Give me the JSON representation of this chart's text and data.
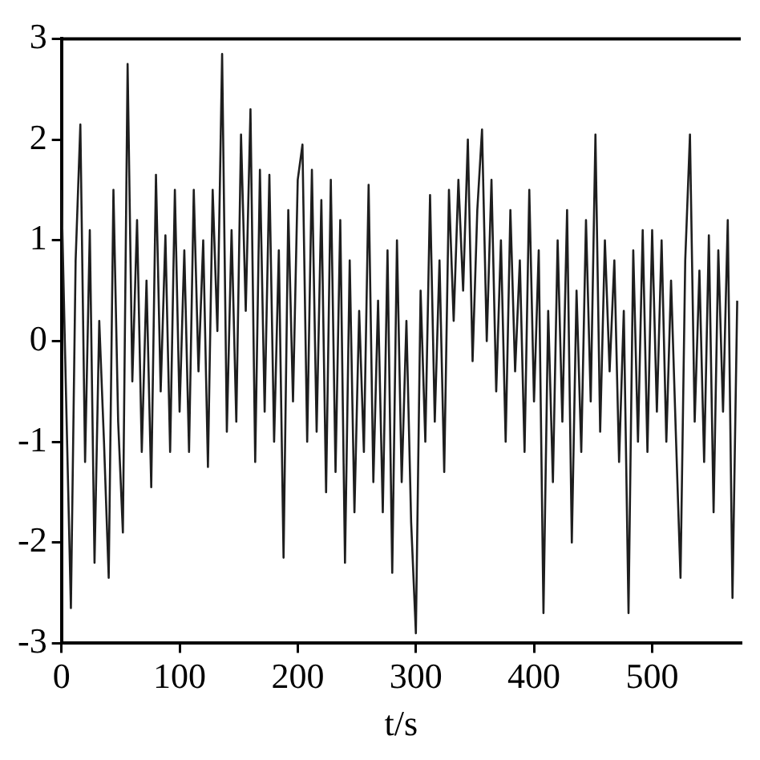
{
  "chart_data": {
    "type": "line",
    "xlabel": "t/s",
    "xlim": [
      0,
      575
    ],
    "xticks": [
      0,
      100,
      200,
      300,
      400,
      500
    ],
    "ylim": [
      -3,
      3
    ],
    "yticks": [
      -3,
      -2,
      -1,
      0,
      1,
      2,
      3
    ],
    "marker": "none",
    "line_style": "solid",
    "x": [
      0,
      4,
      8,
      12,
      16,
      20,
      24,
      28,
      32,
      36,
      40,
      44,
      48,
      52,
      56,
      60,
      64,
      68,
      72,
      76,
      80,
      84,
      88,
      92,
      96,
      100,
      104,
      108,
      112,
      116,
      120,
      124,
      128,
      132,
      136,
      140,
      144,
      148,
      152,
      156,
      160,
      164,
      168,
      172,
      176,
      180,
      184,
      188,
      192,
      196,
      200,
      204,
      208,
      212,
      216,
      220,
      224,
      228,
      232,
      236,
      240,
      244,
      248,
      252,
      256,
      260,
      264,
      268,
      272,
      276,
      280,
      284,
      288,
      292,
      296,
      300,
      304,
      308,
      312,
      316,
      320,
      324,
      328,
      332,
      336,
      340,
      344,
      348,
      352,
      356,
      360,
      364,
      368,
      372,
      376,
      380,
      384,
      388,
      392,
      396,
      400,
      404,
      408,
      412,
      416,
      420,
      424,
      428,
      432,
      436,
      440,
      444,
      448,
      452,
      456,
      460,
      464,
      468,
      472,
      476,
      480,
      484,
      488,
      492,
      496,
      500,
      504,
      508,
      512,
      516,
      520,
      524,
      528,
      532,
      536,
      540,
      544,
      548,
      552,
      556,
      560,
      564,
      568,
      572
    ],
    "series": [
      {
        "color": "#1e1e1e",
        "values": [
          1.5,
          -0.6,
          -2.65,
          0.8,
          2.15,
          -1.2,
          1.1,
          -2.2,
          0.2,
          -1.0,
          -2.35,
          1.5,
          -0.8,
          -1.9,
          2.75,
          -0.4,
          1.2,
          -1.1,
          0.6,
          -1.45,
          1.65,
          -0.5,
          1.05,
          -1.1,
          1.5,
          -0.7,
          0.9,
          -1.1,
          1.5,
          -0.3,
          1.0,
          -1.25,
          1.5,
          0.1,
          2.85,
          -0.9,
          1.1,
          -0.8,
          2.05,
          0.3,
          2.3,
          -1.2,
          1.7,
          -0.7,
          1.65,
          -1.0,
          0.9,
          -2.15,
          1.3,
          -0.6,
          1.6,
          1.95,
          -1.0,
          1.7,
          -0.9,
          1.4,
          -1.5,
          1.6,
          -1.3,
          1.2,
          -2.2,
          0.8,
          -1.7,
          0.3,
          -1.1,
          1.55,
          -1.4,
          0.4,
          -1.7,
          0.9,
          -2.3,
          1.0,
          -1.4,
          0.2,
          -1.8,
          -2.9,
          0.5,
          -1.0,
          1.45,
          -0.8,
          0.8,
          -1.3,
          1.5,
          0.2,
          1.6,
          0.5,
          2.0,
          -0.2,
          1.3,
          2.1,
          0.0,
          1.6,
          -0.5,
          1.0,
          -1.0,
          1.3,
          -0.3,
          0.8,
          -1.1,
          1.5,
          -0.6,
          0.9,
          -2.7,
          0.3,
          -1.4,
          1.0,
          -0.8,
          1.3,
          -2.0,
          0.5,
          -1.1,
          1.2,
          -0.6,
          2.05,
          -0.9,
          1.0,
          -0.3,
          0.8,
          -1.2,
          0.3,
          -2.7,
          0.9,
          -1.0,
          1.1,
          -1.1,
          1.1,
          -0.7,
          1.0,
          -1.0,
          0.6,
          -0.9,
          -2.35,
          0.8,
          2.05,
          -0.8,
          0.7,
          -1.2,
          1.05,
          -1.7,
          0.9,
          -0.7,
          1.2,
          -2.55,
          0.4
        ]
      }
    ]
  }
}
